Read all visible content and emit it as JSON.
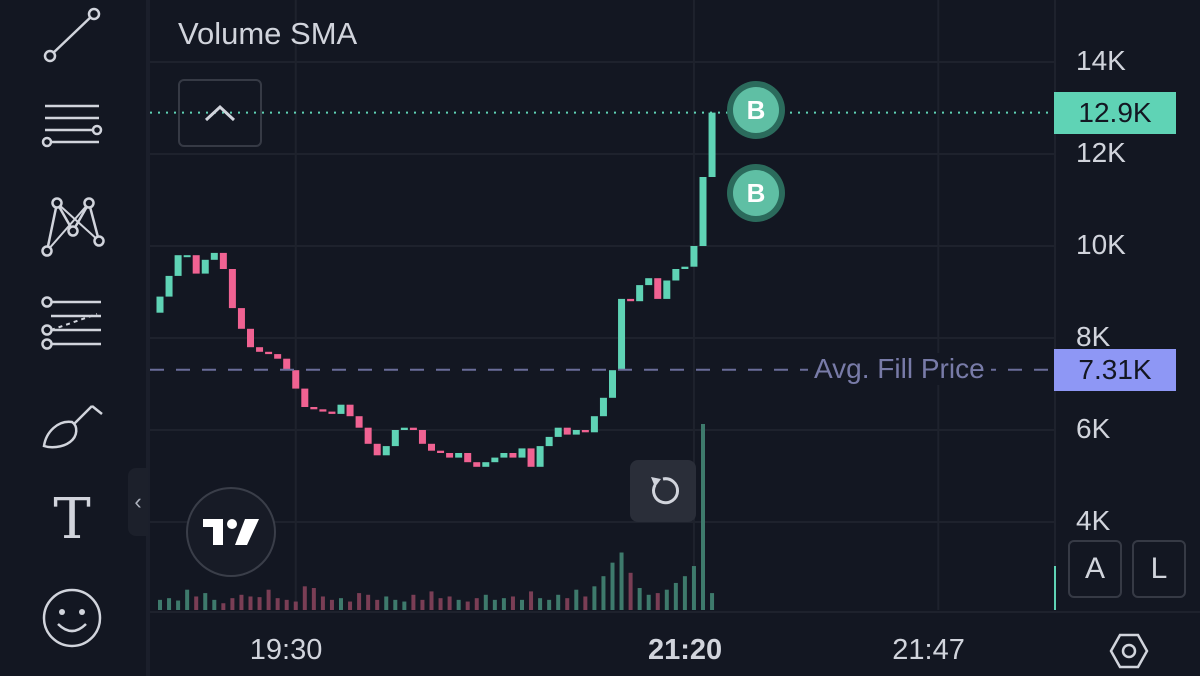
{
  "indicator": {
    "label": "Volume SMA"
  },
  "toolbar": {
    "tools": [
      {
        "name": "trend-line-icon"
      },
      {
        "name": "horizontal-lines-icon"
      },
      {
        "name": "pattern-icon"
      },
      {
        "name": "fib-tools-icon"
      },
      {
        "name": "brush-icon"
      },
      {
        "name": "text-tool-icon"
      },
      {
        "name": "emoji-icon"
      }
    ],
    "text_glyph": "T"
  },
  "collapse_handle": {
    "glyph": "‹"
  },
  "badges": [
    {
      "label": "B",
      "time_index": 61,
      "price": 12950
    },
    {
      "label": "B",
      "time_index": 61,
      "price": 11150
    }
  ],
  "price_axis": {
    "ticks": [
      "14K",
      "12K",
      "10K",
      "8K",
      "6K",
      "4K"
    ],
    "tick_values": [
      14000,
      12000,
      10000,
      8000,
      6000,
      4000
    ],
    "current_price": "12.9K",
    "current_price_value": 12900,
    "avg_fill": "7.31K",
    "avg_fill_value": 7310,
    "avg_fill_label": "Avg. Fill Price"
  },
  "time_axis": {
    "labels": [
      {
        "text": "19:30",
        "index": 15,
        "bold": false
      },
      {
        "text": "21:20",
        "index": 59,
        "bold": true
      },
      {
        "text": "21:47",
        "index": 86,
        "bold": false
      }
    ]
  },
  "scale_buttons": {
    "auto": "A",
    "log": "L"
  },
  "colors": {
    "up": "#5fd3b5",
    "down": "#f06292",
    "current_price_tag": "#5fd3b5",
    "avg_fill_tag": "#8e97f5",
    "volume_up": "#3e7a6c",
    "volume_down": "#7a3e55"
  },
  "chart_data": {
    "type": "candlestick",
    "closes": [
      8900,
      9350,
      9800,
      9800,
      9400,
      9700,
      9850,
      9500,
      8650,
      8200,
      7800,
      7700,
      7650,
      7550,
      7300,
      6900,
      6500,
      6450,
      6400,
      6350,
      6550,
      6300,
      6050,
      5700,
      5450,
      5650,
      6000,
      6050,
      6000,
      5700,
      5550,
      5500,
      5400,
      5500,
      5300,
      5200,
      5300,
      5400,
      5500,
      5400,
      5600,
      5200,
      5650,
      5850,
      6050,
      5900,
      6000,
      5950,
      6300,
      6700,
      7300,
      8850,
      8800,
      9150,
      9300,
      8850,
      9250,
      9500,
      9550,
      10000,
      11500,
      12900
    ],
    "volumes": [
      300,
      350,
      280,
      600,
      400,
      500,
      300,
      200,
      350,
      450,
      400,
      380,
      600,
      350,
      300,
      250,
      700,
      650,
      400,
      300,
      350,
      250,
      500,
      450,
      300,
      400,
      300,
      250,
      450,
      300,
      550,
      350,
      400,
      300,
      250,
      350,
      450,
      300,
      350,
      400,
      300,
      550,
      350,
      300,
      450,
      350,
      600,
      400,
      700,
      1000,
      1400,
      1700,
      1100,
      650,
      450,
      500,
      600,
      800,
      1000,
      1300,
      5500,
      500
    ],
    "ylim": [
      2500,
      15000
    ],
    "volume_max": 5500
  }
}
